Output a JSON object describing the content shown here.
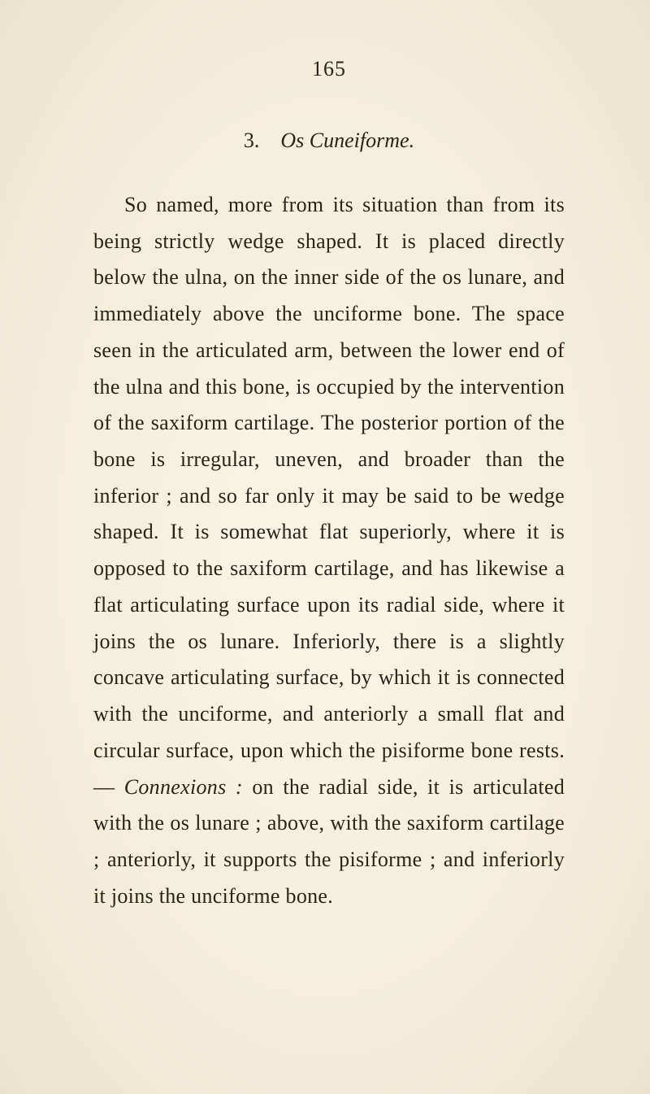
{
  "page": {
    "number": "165",
    "background_color": "#f5f0e0",
    "text_color": "#2a2418",
    "font_family": "Times New Roman",
    "body_fontsize": 26,
    "line_height": 1.72
  },
  "section": {
    "number": "3.",
    "title": "Os Cuneiforme."
  },
  "body": {
    "p1a": "So named, more from its situation than from its being strictly wedge shaped. It is placed directly below the ulna, on the inner side of the os lunare, and immediately above the unciforme bone. The space seen in the articulated arm, between the lower end of the ulna and this bone, is occupied by the intervention of the saxiform cartilage. The posterior portion of the bone is irregular, uneven, and broader than the inferior ; and so far only it may be said to be wedge shaped. It is somewhat flat superiorly, where it is opposed to the saxiform cartilage, and has likewise a flat articulating surface upon its radial side, where it joins the os lunare. Inferiorly, there is a slightly concave articulating surface, by which it is connected with the unciforme, and anteriorly a small flat and circular surface, upon which the pisiforme bone rests.— ",
    "p1_em": "Connexions :",
    "p1b": " on the radial side, it is articulated with the os lunare ; above, with the saxiform cartilage ; anteriorly, it supports the pisiforme ; and inferiorly it joins the unciforme bone."
  }
}
